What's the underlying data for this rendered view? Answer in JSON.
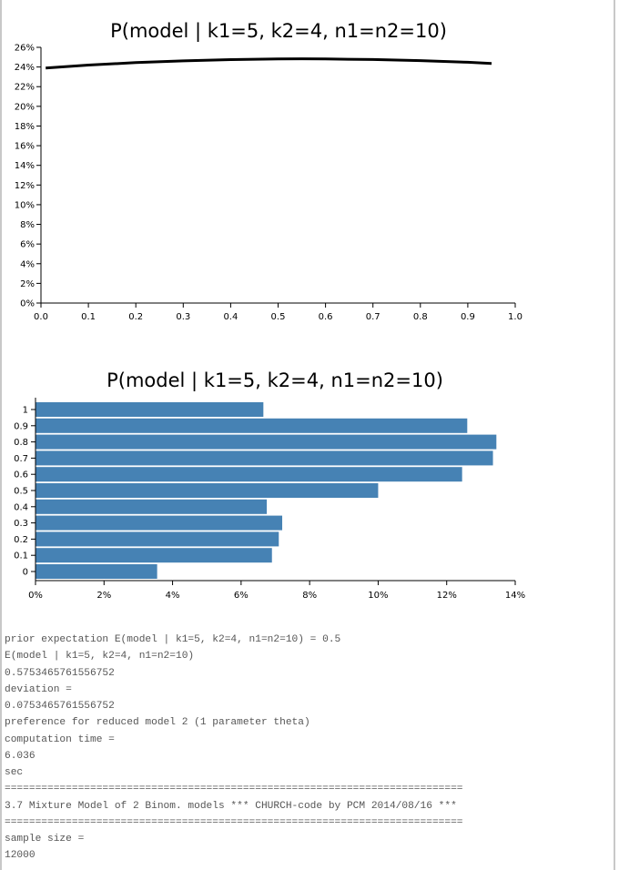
{
  "charts": [
    {
      "title": "P(model | k1=5, k2=4, n1=n2=10)",
      "type": "line",
      "x_ticks": [
        "0.0",
        "0.1",
        "0.2",
        "0.3",
        "0.4",
        "0.5",
        "0.6",
        "0.7",
        "0.8",
        "0.9",
        "1.0"
      ],
      "y_ticks": [
        "0%",
        "2%",
        "4%",
        "6%",
        "8%",
        "10%",
        "12%",
        "14%",
        "16%",
        "18%",
        "20%",
        "22%",
        "24%",
        "26%"
      ]
    },
    {
      "title": "P(model | k1=5, k2=4, n1=n2=10)",
      "type": "bar",
      "y_ticks": [
        "0",
        "0.1",
        "0.2",
        "0.3",
        "0.4",
        "0.5",
        "0.6",
        "0.7",
        "0.8",
        "0.9",
        "1"
      ],
      "x_ticks": [
        "0%",
        "2%",
        "4%",
        "6%",
        "8%",
        "10%",
        "12%",
        "14%"
      ]
    }
  ],
  "chart_data": [
    {
      "type": "line",
      "title": "P(model | k1=5, k2=4, n1=n2=10)",
      "x": [
        0.01,
        0.1,
        0.2,
        0.3,
        0.4,
        0.5,
        0.55,
        0.6,
        0.7,
        0.8,
        0.9,
        0.95
      ],
      "y": [
        23.9,
        24.2,
        24.45,
        24.62,
        24.75,
        24.82,
        24.83,
        24.82,
        24.76,
        24.65,
        24.48,
        24.35
      ],
      "xlim": [
        0,
        1
      ],
      "ylim": [
        0,
        26
      ],
      "y_unit": "%",
      "color": "#000000"
    },
    {
      "type": "bar",
      "orientation": "horizontal",
      "title": "P(model | k1=5, k2=4, n1=n2=10)",
      "categories": [
        "0",
        "0.1",
        "0.2",
        "0.3",
        "0.4",
        "0.5",
        "0.6",
        "0.7",
        "0.8",
        "0.9",
        "1"
      ],
      "values": [
        3.55,
        6.9,
        7.1,
        7.2,
        6.75,
        10.0,
        12.45,
        13.35,
        13.45,
        12.6,
        6.65
      ],
      "xlim": [
        0,
        14
      ],
      "x_unit": "%",
      "color": "#4682b4"
    }
  ],
  "output_lines": [
    "prior expectation E(model | k1=5, k2=4, n1=n2=10) = 0.5",
    "E(model | k1=5, k2=4, n1=n2=10)",
    "0.5753465761556752",
    "deviation =",
    "0.0753465761556752",
    "preference for reduced model 2 (1 parameter theta)",
    "computation time =",
    "6.036",
    "sec",
    "===========================================================================",
    "3.7 Mixture Model of 2 Binom. models *** CHURCH-code by PCM 2014/08/16 ***",
    "===========================================================================",
    "sample size =",
    "12000"
  ]
}
